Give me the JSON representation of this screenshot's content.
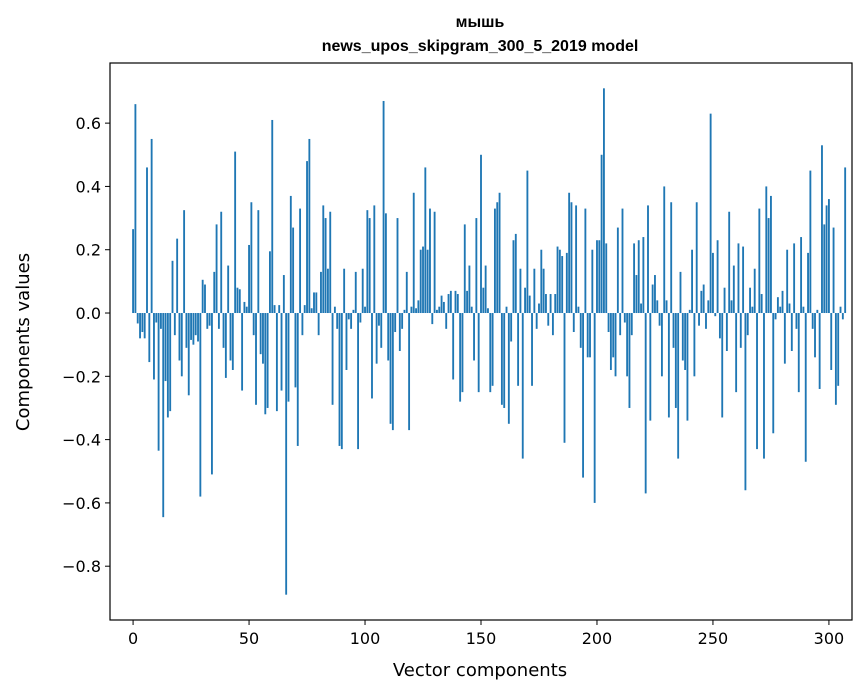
{
  "chart_data": {
    "type": "bar",
    "title_line1": "мышь",
    "title_line2": "news_upos_skipgram_300_5_2019 model",
    "xlabel": "Vector components",
    "ylabel": "Components values",
    "xlim": [
      -9.95,
      309.95
    ],
    "ylim": [
      -0.97,
      0.79
    ],
    "x_ticks": [
      0,
      50,
      100,
      150,
      200,
      250,
      300
    ],
    "x_tick_labels": [
      "0",
      "50",
      "100",
      "150",
      "200",
      "250",
      "300"
    ],
    "y_ticks": [
      -0.8,
      -0.6,
      -0.4,
      -0.2,
      0.0,
      0.2,
      0.4,
      0.6
    ],
    "y_tick_labels": [
      "−0.8",
      "−0.6",
      "−0.4",
      "−0.2",
      "0.0",
      "0.2",
      "0.4",
      "0.6"
    ],
    "bar_color": "#1f77b4",
    "values": [
      0.265,
      0.66,
      -0.033,
      -0.08,
      -0.06,
      -0.08,
      0.46,
      -0.155,
      0.55,
      -0.21,
      -0.03,
      -0.435,
      -0.05,
      -0.645,
      -0.215,
      -0.33,
      -0.31,
      0.165,
      -0.07,
      0.235,
      -0.15,
      -0.2,
      0.325,
      -0.11,
      -0.26,
      -0.085,
      -0.1,
      -0.07,
      -0.09,
      -0.58,
      0.105,
      0.09,
      -0.05,
      -0.04,
      -0.51,
      0.13,
      0.28,
      -0.05,
      0.32,
      -0.11,
      -0.205,
      0.15,
      -0.15,
      -0.18,
      0.51,
      0.08,
      0.075,
      -0.245,
      0.035,
      0.02,
      0.215,
      0.35,
      -0.07,
      -0.29,
      0.325,
      -0.13,
      -0.16,
      -0.32,
      -0.3,
      0.195,
      0.61,
      0.025,
      -0.31,
      0.025,
      -0.245,
      0.12,
      -0.89,
      -0.28,
      0.37,
      0.27,
      -0.235,
      -0.42,
      0.33,
      -0.07,
      0.025,
      0.48,
      0.55,
      0.015,
      0.065,
      0.065,
      -0.07,
      0.13,
      0.34,
      0.3,
      0.14,
      0.32,
      -0.29,
      0.02,
      -0.05,
      -0.42,
      -0.43,
      0.14,
      -0.18,
      -0.02,
      -0.05,
      0.01,
      0.13,
      -0.43,
      -0.03,
      0.14,
      0.02,
      0.325,
      0.3,
      -0.27,
      0.34,
      -0.16,
      -0.04,
      -0.11,
      0.67,
      0.315,
      -0.15,
      -0.35,
      -0.37,
      -0.06,
      0.3,
      -0.12,
      -0.05,
      0.01,
      0.13,
      -0.37,
      0.02,
      0.38,
      0.015,
      0.04,
      0.2,
      0.21,
      0.46,
      0.2,
      0.33,
      -0.035,
      0.32,
      0.01,
      0.02,
      0.055,
      0.035,
      -0.05,
      0.06,
      0.07,
      -0.21,
      0.07,
      0.06,
      -0.28,
      -0.25,
      0.28,
      0.07,
      0.15,
      0.02,
      -0.15,
      0.3,
      -0.25,
      0.5,
      0.08,
      0.15,
      0.015,
      -0.25,
      -0.23,
      0.33,
      0.35,
      0.38,
      -0.29,
      -0.3,
      0.02,
      -0.35,
      -0.09,
      0.23,
      0.25,
      -0.23,
      0.14,
      -0.46,
      0.08,
      0.45,
      0.055,
      -0.23,
      0.14,
      -0.05,
      0.03,
      0.2,
      0.14,
      0.06,
      -0.04,
      0.06,
      -0.07,
      0.06,
      0.21,
      0.2,
      0.18,
      -0.41,
      0.19,
      0.38,
      0.35,
      -0.06,
      0.34,
      0.02,
      -0.11,
      -0.52,
      0.33,
      -0.14,
      -0.14,
      0.2,
      -0.6,
      0.23,
      0.23,
      0.5,
      0.71,
      0.22,
      -0.06,
      -0.18,
      -0.14,
      -0.2,
      0.27,
      -0.07,
      0.33,
      -0.03,
      -0.2,
      -0.3,
      -0.07,
      0.22,
      0.12,
      0.23,
      0.03,
      0.24,
      -0.57,
      0.34,
      -0.34,
      0.09,
      0.12,
      0.04,
      -0.04,
      -0.2,
      0.4,
      0.04,
      -0.33,
      0.35,
      -0.11,
      -0.3,
      -0.46,
      0.13,
      -0.15,
      -0.18,
      -0.34,
      0.01,
      0.2,
      -0.2,
      0.35,
      -0.04,
      0.07,
      0.09,
      -0.05,
      0.04,
      0.63,
      0.19,
      -0.01,
      0.23,
      -0.08,
      -0.33,
      0.08,
      -0.12,
      0.32,
      0.04,
      0.15,
      -0.25,
      0.22,
      -0.11,
      0.21,
      -0.56,
      -0.07,
      0.08,
      0.02,
      0.14,
      -0.43,
      0.33,
      0.06,
      -0.46,
      0.4,
      0.3,
      0.37,
      -0.38,
      -0.02,
      0.05,
      0.02,
      0.07,
      -0.16,
      0.2,
      0.03,
      -0.12,
      0.22,
      -0.05,
      -0.25,
      0.24,
      0.02,
      -0.47,
      0.19,
      0.45,
      -0.05,
      -0.14,
      0.01,
      -0.24,
      0.53,
      0.28,
      0.34,
      0.36,
      -0.18,
      0.27,
      -0.29,
      -0.23,
      0.02,
      -0.02,
      0.46
    ]
  }
}
